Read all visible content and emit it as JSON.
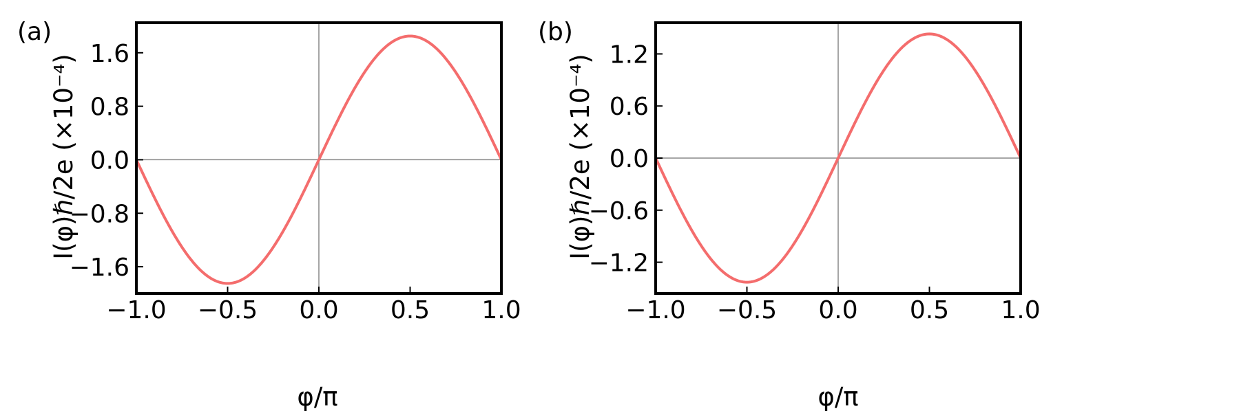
{
  "chart_data": [
    {
      "type": "line",
      "panel_label": "(a)",
      "xlabel": "φ/π",
      "ylabel": "I(φ)ℏ/2e (×10⁻⁴)",
      "xlim": [
        -1.0,
        1.0
      ],
      "ylim": [
        -2.0,
        2.05
      ],
      "x_ticks": [
        -1.0,
        -0.5,
        0.0,
        0.5,
        1.0
      ],
      "x_tick_labels": [
        "−1.0",
        "−0.5",
        "0.0",
        "0.5",
        "1.0"
      ],
      "y_ticks": [
        -1.6,
        -0.8,
        0.0,
        0.8,
        1.6
      ],
      "y_tick_labels": [
        "−1.6",
        "−0.8",
        "0.0",
        "0.8",
        "1.6"
      ],
      "reference_lines": {
        "x": 0.0,
        "y": 0.0
      },
      "grid": false,
      "series": [
        {
          "color": "#f46d6d",
          "x": [
            -1.0,
            -0.9,
            -0.8,
            -0.7,
            -0.6,
            -0.5,
            -0.4,
            -0.3,
            -0.2,
            -0.1,
            0.0,
            0.1,
            0.2,
            0.3,
            0.4,
            0.5,
            0.6,
            0.7,
            0.8,
            0.9,
            1.0
          ],
          "y": [
            0.0,
            -0.57,
            -1.08,
            -1.49,
            -1.76,
            -1.85,
            -1.76,
            -1.49,
            -1.08,
            -0.57,
            0.0,
            0.57,
            1.08,
            1.49,
            1.76,
            1.85,
            1.76,
            1.49,
            1.08,
            0.57,
            0.0
          ]
        }
      ]
    },
    {
      "type": "line",
      "panel_label": "(b)",
      "xlabel": "φ/π",
      "ylabel": "I(φ)ℏ/2e (×10⁻⁴)",
      "xlim": [
        -1.0,
        1.0
      ],
      "ylim": [
        -1.56,
        1.56
      ],
      "x_ticks": [
        -1.0,
        -0.5,
        0.0,
        0.5,
        1.0
      ],
      "x_tick_labels": [
        "−1.0",
        "−0.5",
        "0.0",
        "0.5",
        "1.0"
      ],
      "y_ticks": [
        -1.2,
        -0.6,
        0.0,
        0.6,
        1.2
      ],
      "y_tick_labels": [
        "−1.2",
        "−0.6",
        "0.0",
        "0.6",
        "1.2"
      ],
      "reference_lines": {
        "x": 0.0,
        "y": 0.0
      },
      "grid": false,
      "series": [
        {
          "color": "#f46d6d",
          "x": [
            -1.0,
            -0.9,
            -0.8,
            -0.7,
            -0.6,
            -0.5,
            -0.4,
            -0.3,
            -0.2,
            -0.1,
            0.0,
            0.1,
            0.2,
            0.3,
            0.4,
            0.5,
            0.6,
            0.7,
            0.8,
            0.9,
            1.0
          ],
          "y": [
            0.0,
            -0.44,
            -0.84,
            -1.16,
            -1.36,
            -1.43,
            -1.36,
            -1.16,
            -0.84,
            -0.44,
            0.0,
            0.44,
            0.84,
            1.16,
            1.36,
            1.43,
            1.36,
            1.16,
            0.84,
            0.44,
            0.0
          ]
        }
      ]
    }
  ]
}
